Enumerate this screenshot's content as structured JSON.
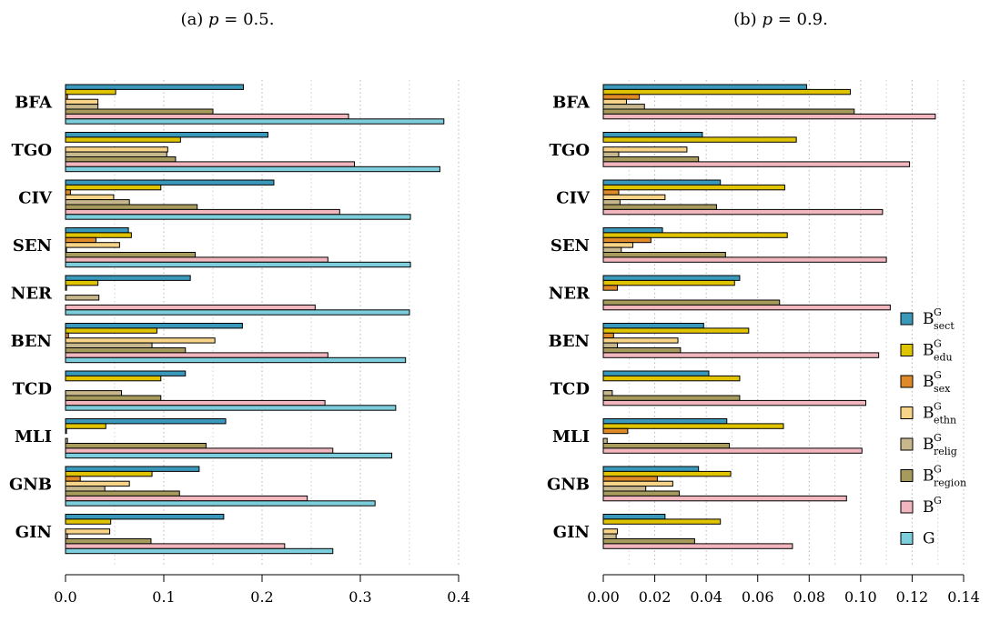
{
  "series": [
    {
      "key": "B_sect",
      "base": "B",
      "sup": "G",
      "sub": "sect",
      "color": "#3A98BA"
    },
    {
      "key": "B_edu",
      "base": "B",
      "sup": "G",
      "sub": "edu",
      "color": "#E1C400"
    },
    {
      "key": "B_sex",
      "base": "B",
      "sup": "G",
      "sub": "sex",
      "color": "#DE8A28"
    },
    {
      "key": "B_ethn",
      "base": "B",
      "sup": "G",
      "sub": "ethn",
      "color": "#F7D487"
    },
    {
      "key": "B_relig",
      "base": "B",
      "sup": "G",
      "sub": "relig",
      "color": "#C7B78C"
    },
    {
      "key": "B_region",
      "base": "B",
      "sup": "G",
      "sub": "region",
      "color": "#A69A5C"
    },
    {
      "key": "B",
      "base": "B",
      "sup": "G",
      "sub": "",
      "color": "#F2B6BE"
    },
    {
      "key": "G",
      "base": "G",
      "sup": "",
      "sub": "",
      "color": "#7DCEDC"
    }
  ],
  "chart_data": [
    {
      "type": "bar",
      "orientation": "horizontal",
      "title_prefix": "(a) ",
      "title_var": "p",
      "title_suffix": " = 0.5.",
      "categories": [
        "BFA",
        "TGO",
        "CIV",
        "SEN",
        "NER",
        "BEN",
        "TCD",
        "MLI",
        "GNB",
        "GIN"
      ],
      "xlim": [
        0,
        0.4
      ],
      "xticks": [
        0,
        0.1,
        0.2,
        0.3,
        0.4
      ],
      "xtick_labels": [
        "0.0",
        "0.1",
        "0.2",
        "0.3",
        "0.4"
      ],
      "values": [
        [
          0.181,
          0.051,
          0.002,
          0.033,
          0.033,
          0.15,
          0.288,
          0.385
        ],
        [
          0.206,
          0.117,
          0.0,
          0.104,
          0.103,
          0.112,
          0.294,
          0.381
        ],
        [
          0.212,
          0.097,
          0.005,
          0.049,
          0.065,
          0.134,
          0.279,
          0.351
        ],
        [
          0.064,
          0.067,
          0.031,
          0.055,
          0.001,
          0.132,
          0.267,
          0.351
        ],
        [
          0.127,
          0.033,
          0.001,
          0.0,
          0.034,
          0.0,
          0.254,
          0.35
        ],
        [
          0.18,
          0.093,
          0.003,
          0.152,
          0.088,
          0.122,
          0.267,
          0.346
        ],
        [
          0.122,
          0.097,
          0.0,
          0.0,
          0.057,
          0.097,
          0.264,
          0.336
        ],
        [
          0.163,
          0.041,
          0.001,
          0.0,
          0.002,
          0.143,
          0.272,
          0.332
        ],
        [
          0.136,
          0.088,
          0.015,
          0.065,
          0.04,
          0.116,
          0.246,
          0.315
        ],
        [
          0.161,
          0.046,
          0.0,
          0.045,
          0.002,
          0.087,
          0.223,
          0.272
        ]
      ]
    },
    {
      "type": "bar",
      "orientation": "horizontal",
      "title_prefix": "(b) ",
      "title_var": "p",
      "title_suffix": " = 0.9.",
      "categories": [
        "BFA",
        "TGO",
        "CIV",
        "SEN",
        "NER",
        "BEN",
        "TCD",
        "MLI",
        "GNB",
        "GIN"
      ],
      "xlim": [
        0,
        0.14
      ],
      "xticks": [
        0,
        0.02,
        0.04,
        0.06,
        0.08,
        0.1,
        0.12,
        0.14
      ],
      "xtick_labels": [
        "0.00",
        "0.02",
        "0.04",
        "0.06",
        "0.08",
        "0.10",
        "0.12",
        "0.14"
      ],
      "values": [
        [
          0.079,
          0.096,
          0.014,
          0.009,
          0.016,
          0.0975,
          0.129,
          0.0
        ],
        [
          0.0385,
          0.075,
          0.0,
          0.0325,
          0.006,
          0.037,
          0.119,
          0.0
        ],
        [
          0.0455,
          0.0705,
          0.006,
          0.024,
          0.0065,
          0.044,
          0.1085,
          0.0
        ],
        [
          0.023,
          0.0715,
          0.0185,
          0.0115,
          0.007,
          0.0475,
          0.11,
          0.0
        ],
        [
          0.053,
          0.051,
          0.0055,
          0.0,
          0.0,
          0.0685,
          0.1115,
          0.0
        ],
        [
          0.039,
          0.0565,
          0.004,
          0.029,
          0.0055,
          0.03,
          0.107,
          0.0
        ],
        [
          0.041,
          0.053,
          0.0,
          0.0,
          0.0035,
          0.053,
          0.102,
          0.0
        ],
        [
          0.048,
          0.07,
          0.0095,
          0.0,
          0.0015,
          0.049,
          0.1005,
          0.0
        ],
        [
          0.037,
          0.0495,
          0.021,
          0.027,
          0.0165,
          0.0295,
          0.0945,
          0.0
        ],
        [
          0.024,
          0.0455,
          0.0,
          0.0055,
          0.005,
          0.0355,
          0.0735,
          0.0
        ]
      ]
    }
  ]
}
